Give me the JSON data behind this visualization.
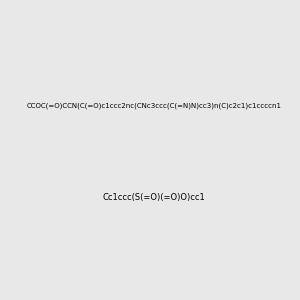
{
  "smiles_main": "CCOC(=O)CCN(C(=O)c1ccc2nc(CNc3ccc(C(=N)N)cc3)n(C)c2c1)c1ccccn1",
  "smiles_salt": "Cc1ccc(S(=O)(=O)O)cc1",
  "background_color": "#e8e8e8",
  "fig_width": 3.0,
  "fig_height": 3.0,
  "dpi": 100
}
